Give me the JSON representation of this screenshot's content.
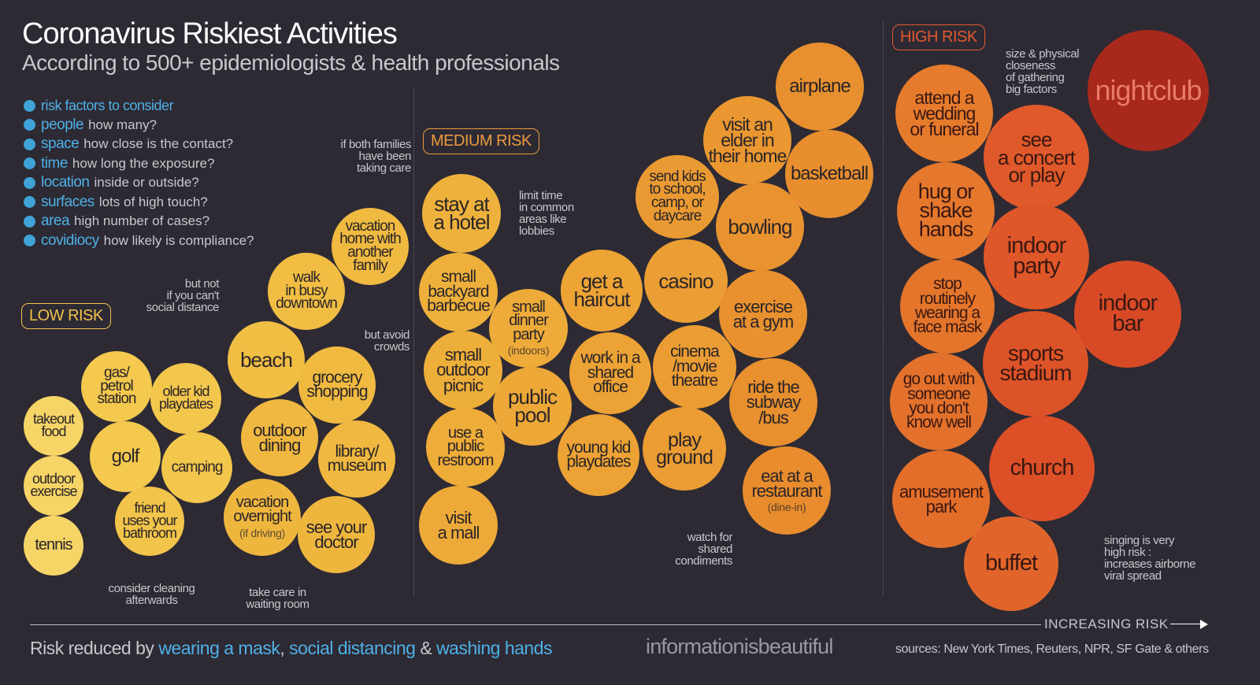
{
  "header": {
    "title": "Coronavirus Riskiest Activities",
    "subtitle": "According to 500+ epidemiologists & health professionals"
  },
  "factors": {
    "heading": "risk factors to consider",
    "items": [
      {
        "name": "people",
        "desc": "how many?",
        "icon": "people-icon"
      },
      {
        "name": "space",
        "desc": "how close is the contact?",
        "icon": "space-icon"
      },
      {
        "name": "time",
        "desc": "how long the exposure?",
        "icon": "clock-icon"
      },
      {
        "name": "location",
        "desc": "inside or outside?",
        "icon": "location-icon"
      },
      {
        "name": "surfaces",
        "desc": "lots of high touch?",
        "icon": "hand-icon"
      },
      {
        "name": "area",
        "desc": "high number of cases?",
        "icon": "globe-icon"
      },
      {
        "name": "covidiocy",
        "desc": "how likely is compliance?",
        "icon": "head-icon"
      }
    ]
  },
  "risk_levels": {
    "low": "LOW RISK",
    "medium": "MEDIUM RISK",
    "high": "HIGH RISK"
  },
  "colors": {
    "background": "#2d2a34",
    "accent_blue": "#4fb0e6",
    "low": "#f2c14a",
    "medium": "#ec9a3c",
    "high": "#e2582e",
    "highest": "#a8291c"
  },
  "activities": [
    {
      "label": "takeout\nfood",
      "risk": "low",
      "color": "#f6d466"
    },
    {
      "label": "outdoor\nexercise",
      "risk": "low",
      "color": "#f6d466"
    },
    {
      "label": "tennis",
      "risk": "low",
      "color": "#f6d466"
    },
    {
      "label": "gas/\npetrol\nstation",
      "risk": "low",
      "color": "#f4c94e"
    },
    {
      "label": "golf",
      "risk": "low",
      "color": "#f4c94e"
    },
    {
      "label": "older kid\nplaydates",
      "risk": "low",
      "color": "#f3c64c"
    },
    {
      "label": "camping",
      "risk": "low",
      "color": "#f3c64c"
    },
    {
      "label": "friend\nuses your\nbathroom",
      "risk": "low",
      "color": "#f3c44a"
    },
    {
      "label": "beach",
      "risk": "low",
      "color": "#f1be44"
    },
    {
      "label": "walk\nin busy\ndowntown",
      "risk": "low",
      "color": "#f1bd43"
    },
    {
      "label": "vacation\nhome with\nanother\nfamily",
      "risk": "low",
      "color": "#f0ba41"
    },
    {
      "label": "grocery\nshopping",
      "risk": "low",
      "color": "#f0ba41"
    },
    {
      "label": "outdoor\ndining",
      "risk": "low",
      "color": "#f0b840"
    },
    {
      "label": "library/\nmuseum",
      "risk": "low",
      "color": "#f0b840"
    },
    {
      "label": "vacation\novernight",
      "sub": "(if driving)",
      "risk": "low",
      "color": "#efb63e"
    },
    {
      "label": "see your\ndoctor",
      "risk": "low",
      "color": "#efb63e"
    },
    {
      "label": "stay at\na hotel",
      "risk": "medium",
      "color": "#eeb23c"
    },
    {
      "label": "small\nbackyard\nbarbecue",
      "risk": "medium",
      "color": "#eeb03b"
    },
    {
      "label": "small\noutdoor\npicnic",
      "risk": "medium",
      "color": "#eeae3a"
    },
    {
      "label": "use a\npublic\nrestroom",
      "risk": "medium",
      "color": "#eeac39"
    },
    {
      "label": "visit\na mall",
      "risk": "medium",
      "color": "#eeaa38"
    },
    {
      "label": "small\ndinner\nparty",
      "sub": "(indoors)",
      "risk": "medium",
      "color": "#eeab39"
    },
    {
      "label": "public\npool",
      "risk": "medium",
      "color": "#eda837"
    },
    {
      "label": "get a\nhaircut",
      "risk": "medium",
      "color": "#eda435"
    },
    {
      "label": "work in a\nshared\noffice",
      "risk": "medium",
      "color": "#eca234"
    },
    {
      "label": "young kid\nplaydates",
      "risk": "medium",
      "color": "#eca234"
    },
    {
      "label": "casino",
      "risk": "medium",
      "color": "#eb9e33"
    },
    {
      "label": "cinema\n/movie\ntheatre",
      "risk": "medium",
      "color": "#eb9c33"
    },
    {
      "label": "play\nground",
      "risk": "medium",
      "color": "#eb9c33"
    },
    {
      "label": "send kids\nto school,\ncamp, or\ndaycare",
      "risk": "medium",
      "color": "#ea9a32"
    },
    {
      "label": "visit an\nelder in\ntheir home",
      "risk": "medium",
      "color": "#ea9731"
    },
    {
      "label": "bowling",
      "risk": "medium",
      "color": "#e99330"
    },
    {
      "label": "exercise\nat a gym",
      "risk": "medium",
      "color": "#e9912f"
    },
    {
      "label": "ride the\nsubway\n/bus",
      "risk": "medium",
      "color": "#e88f2e"
    },
    {
      "label": "eat at a\nrestaurant",
      "sub": "(dine-in)",
      "risk": "medium",
      "color": "#e88c2d"
    },
    {
      "label": "airplane",
      "risk": "medium",
      "color": "#e8902f"
    },
    {
      "label": "basketball",
      "risk": "medium",
      "color": "#e88e2e"
    },
    {
      "label": "attend a\nwedding\nor funeral",
      "risk": "high",
      "color": "#e67b2c"
    },
    {
      "label": "hug or\nshake\nhands",
      "risk": "high",
      "color": "#e5782c"
    },
    {
      "label": "stop\nroutinely\nwearing a\nface mask",
      "risk": "high",
      "color": "#e4752b"
    },
    {
      "label": "go out with\nsomeone\nyou don't\nknow well",
      "risk": "high",
      "color": "#e3712b"
    },
    {
      "label": "amusement\npark",
      "risk": "high",
      "color": "#e36e2a"
    },
    {
      "label": "see\na concert\nor play",
      "risk": "high",
      "color": "#e0592a"
    },
    {
      "label": "indoor\nparty",
      "risk": "high",
      "color": "#df5629"
    },
    {
      "label": "sports\nstadium",
      "risk": "high",
      "color": "#dd5328"
    },
    {
      "label": "church",
      "risk": "high",
      "color": "#dc4f27"
    },
    {
      "label": "buffet",
      "risk": "high",
      "color": "#e1652b"
    },
    {
      "label": "indoor\nbar",
      "risk": "high",
      "color": "#d84a26"
    },
    {
      "label": "nightclub",
      "risk": "high",
      "color": "#a8291c"
    }
  ],
  "notes": {
    "both_families": "if both families\nhave been\ntaking care",
    "but_not": "but not\nif you can't\nsocial distance",
    "avoid_crowds": "but avoid\ncrowds",
    "cleaning": "consider cleaning\nafterwards",
    "waiting_room": "take care in\nwaiting room",
    "limit_time": "limit time\nin common\nareas like\nlobbies",
    "condiments": "watch for\nshared\ncondiments",
    "gathering": "size & physical\ncloseness\nof gathering\nbig factors",
    "singing": "singing is very\nhigh risk :\nincreases airborne\nviral spread"
  },
  "axis": {
    "label": "INCREASING RISK"
  },
  "footer": {
    "prefix": "Risk reduced by ",
    "mask": "wearing a mask",
    "sep1": ", ",
    "distancing": "social distancing",
    "sep2": " & ",
    "washing": "washing hands",
    "brand": "informationisbeautiful",
    "sources": "sources: New York Times, Reuters, NPR, SF Gate & others"
  }
}
